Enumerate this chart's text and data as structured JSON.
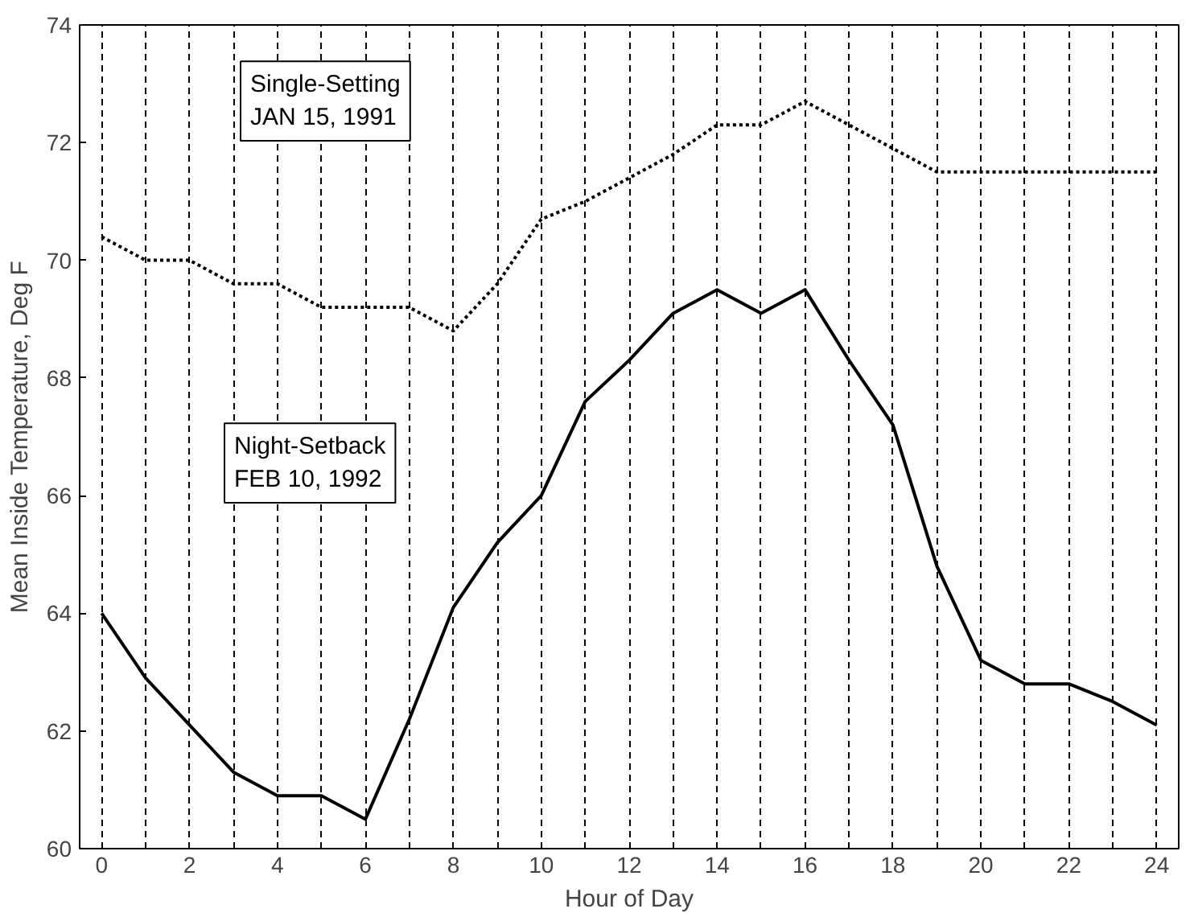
{
  "chart_data": {
    "type": "line",
    "xlabel": "Hour of Day",
    "ylabel": "Mean Inside Temperature, Deg F",
    "x": [
      0,
      1,
      2,
      3,
      4,
      5,
      6,
      7,
      8,
      9,
      10,
      11,
      12,
      13,
      14,
      15,
      16,
      17,
      18,
      19,
      20,
      21,
      22,
      23,
      24
    ],
    "series": [
      {
        "name": "Single-Setting\nJAN 15, 1991",
        "color": "#000000",
        "line_style": "dotted",
        "values": [
          70.4,
          70.0,
          70.0,
          69.6,
          69.6,
          69.2,
          69.2,
          69.2,
          68.8,
          69.6,
          70.7,
          71.0,
          71.4,
          71.8,
          72.3,
          72.3,
          72.7,
          72.3,
          71.9,
          71.5,
          71.5,
          71.5,
          71.5,
          71.5,
          71.5
        ]
      },
      {
        "name": "Night-Setback\nFEB 10, 1992",
        "color": "#000000",
        "line_style": "solid",
        "values": [
          64.0,
          62.9,
          62.1,
          61.3,
          60.9,
          60.9,
          60.5,
          62.2,
          64.1,
          65.2,
          66.0,
          67.6,
          68.3,
          69.1,
          69.5,
          69.1,
          69.5,
          68.3,
          67.2,
          64.8,
          63.2,
          62.8,
          62.8,
          62.5,
          62.1
        ]
      }
    ],
    "xlim": [
      -0.5,
      24.5
    ],
    "ylim": [
      60,
      74
    ],
    "xticks": [
      0,
      {
        "value": 1,
        "label": null
      },
      2,
      {
        "value": 3,
        "label": null
      },
      4,
      {
        "value": 5,
        "label": null
      },
      6,
      {
        "value": 7,
        "label": null
      },
      8,
      {
        "value": 9,
        "label": null
      },
      10,
      {
        "value": 11,
        "label": null
      },
      12,
      {
        "value": 13,
        "label": null
      },
      14,
      {
        "value": 15,
        "label": null
      },
      16,
      {
        "value": 17,
        "label": null
      },
      18,
      {
        "value": 19,
        "label": null
      },
      20,
      {
        "value": 21,
        "label": null
      },
      22,
      {
        "value": 23,
        "label": null
      },
      24
    ],
    "yticks": [
      60,
      62,
      64,
      66,
      68,
      70,
      72,
      74
    ],
    "grid": "x",
    "legend": false,
    "marker": "none"
  }
}
